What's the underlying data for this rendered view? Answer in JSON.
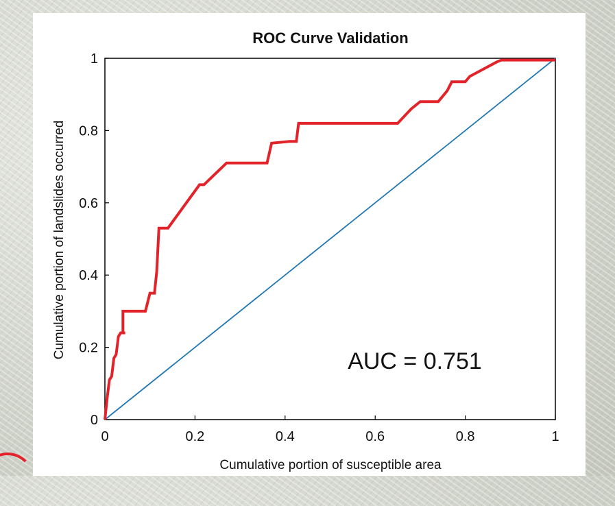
{
  "chart_data": {
    "type": "line",
    "title": "ROC Curve Validation",
    "xlabel": "Cumulative portion of susceptible area",
    "ylabel": "Cumulative portion of landslides occurred",
    "xlim": [
      0,
      1
    ],
    "ylim": [
      0,
      1
    ],
    "x_ticks": [
      "0",
      "0.2",
      "0.4",
      "0.6",
      "0.8",
      "1"
    ],
    "y_ticks": [
      "0",
      "0.2",
      "0.4",
      "0.6",
      "0.8",
      "1"
    ],
    "x_tick_values": [
      0,
      0.2,
      0.4,
      0.6,
      0.8,
      1
    ],
    "y_tick_values": [
      0,
      0.2,
      0.4,
      0.6,
      0.8,
      1
    ],
    "grid": false,
    "annotation": "AUC = 0.751",
    "series": [
      {
        "color": "#e2242a",
        "x": [
          0,
          0.005,
          0.01,
          0.015,
          0.02,
          0.025,
          0.03,
          0.035,
          0.045,
          0.04,
          0.04,
          0.09,
          0.1,
          0.11,
          0.115,
          0.12,
          0.14,
          0.21,
          0.22,
          0.27,
          0.36,
          0.37,
          0.41,
          0.425,
          0.43,
          0.65,
          0.68,
          0.7,
          0.74,
          0.76,
          0.77,
          0.8,
          0.81,
          0.87,
          0.88,
          1.0
        ],
        "y": [
          0,
          0.06,
          0.11,
          0.12,
          0.17,
          0.18,
          0.23,
          0.24,
          0.24,
          0.24,
          0.3,
          0.3,
          0.35,
          0.35,
          0.41,
          0.53,
          0.53,
          0.65,
          0.65,
          0.71,
          0.71,
          0.765,
          0.77,
          0.77,
          0.82,
          0.82,
          0.86,
          0.88,
          0.88,
          0.91,
          0.935,
          0.935,
          0.95,
          0.99,
          0.995,
          0.995
        ]
      },
      {
        "color": "#1f77b4",
        "x": [
          0,
          1
        ],
        "y": [
          0,
          1
        ]
      }
    ]
  }
}
